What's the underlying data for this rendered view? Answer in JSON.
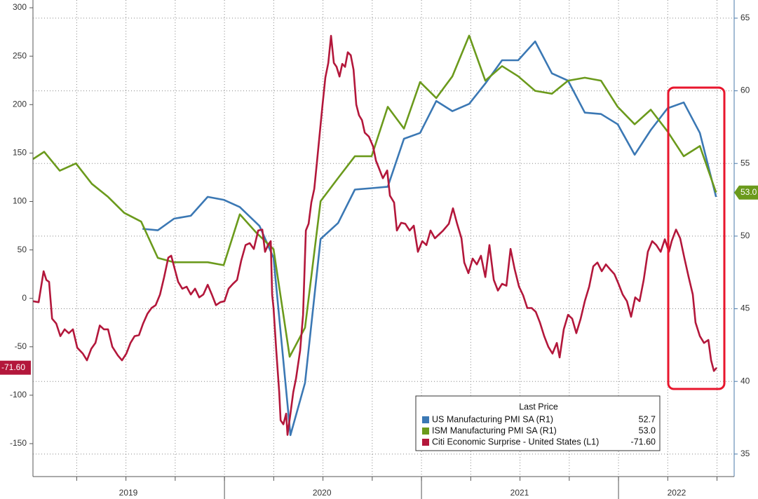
{
  "chart_data": {
    "type": "line",
    "xlim": [
      2019.028,
      2022.587
    ],
    "xticks": [
      {
        "value": 2019.512,
        "label": "2019"
      },
      {
        "value": 2020.495,
        "label": "2020"
      },
      {
        "value": 2021.498,
        "label": "2021"
      },
      {
        "value": 2022.295,
        "label": "2022"
      }
    ],
    "year_boundaries": [
      2020,
      2021,
      2022
    ],
    "xgrid": [
      2019.25,
      2019.5,
      2019.75,
      2020,
      2020.25,
      2020.5,
      2020.75,
      2021,
      2021.25,
      2021.5,
      2021.75,
      2022,
      2022.25,
      2022.5
    ],
    "ylim": [
      -184,
      308
    ],
    "yticks": [
      -150,
      -100,
      -50,
      0,
      50,
      100,
      150,
      200,
      250,
      300
    ],
    "y2lim": [
      33.45,
      66.25
    ],
    "y2ticks": [
      35,
      40,
      45,
      50,
      55,
      60,
      65
    ],
    "grid": true,
    "legend_title": "Last Price",
    "series": [
      {
        "name": "US Manufacturing PMI SA (R1)",
        "color": "#3b78b4",
        "axis": "y2",
        "last_value": 52.7,
        "last_label": "52.7",
        "x": [
          2019.584,
          2019.662,
          2019.744,
          2019.829,
          2019.915,
          2019.996,
          2020.078,
          2020.178,
          2020.249,
          2020.335,
          2020.409,
          2020.488,
          2020.577,
          2020.662,
          2020.747,
          2020.829,
          2020.911,
          2020.993,
          2021.075,
          2021.157,
          2021.242,
          2021.324,
          2021.409,
          2021.491,
          2021.577,
          2021.662,
          2021.744,
          2021.829,
          2021.911,
          2021.996,
          2022.082,
          2022.164,
          2022.249,
          2022.331,
          2022.413,
          2022.495
        ],
        "values": [
          50.5,
          50.4,
          51.2,
          51.4,
          52.7,
          52.5,
          52.0,
          50.7,
          48.5,
          36.3,
          39.9,
          49.8,
          50.9,
          53.2,
          53.3,
          53.4,
          56.7,
          57.1,
          59.3,
          58.6,
          59.1,
          60.5,
          62.1,
          62.1,
          63.4,
          61.2,
          60.7,
          58.5,
          58.4,
          57.7,
          55.6,
          57.3,
          58.8,
          59.2,
          57.1,
          52.7
        ]
      },
      {
        "name": "ISM Manufacturing PMI SA (R1)",
        "color": "#6b9a1c",
        "axis": "y2",
        "last_value": 53.0,
        "last_label": "53.0",
        "x": [
          2019.028,
          2019.085,
          2019.164,
          2019.246,
          2019.327,
          2019.409,
          2019.491,
          2019.577,
          2019.662,
          2019.744,
          2019.829,
          2019.915,
          2019.996,
          2020.078,
          2020.164,
          2020.249,
          2020.331,
          2020.409,
          2020.488,
          2020.577,
          2020.662,
          2020.747,
          2020.829,
          2020.911,
          2020.993,
          2021.075,
          2021.157,
          2021.242,
          2021.324,
          2021.409,
          2021.491,
          2021.577,
          2021.662,
          2021.744,
          2021.829,
          2021.911,
          2021.996,
          2022.082,
          2022.164,
          2022.249,
          2022.331,
          2022.413,
          2022.495
        ],
        "values": [
          55.3,
          55.8,
          54.5,
          55.0,
          53.6,
          52.7,
          51.6,
          51.0,
          48.5,
          48.2,
          48.2,
          48.2,
          48.0,
          51.5,
          50.2,
          49.1,
          41.7,
          43.7,
          52.4,
          54.0,
          55.5,
          55.5,
          58.9,
          57.4,
          60.6,
          59.5,
          61.0,
          63.8,
          60.7,
          61.7,
          61.0,
          60.0,
          59.8,
          60.7,
          60.9,
          60.7,
          58.9,
          57.7,
          58.7,
          57.2,
          55.5,
          56.2,
          53.0
        ]
      },
      {
        "name": "Citi Economic Surprise - United States (L1)",
        "color": "#b3173b",
        "axis": "y",
        "last_value": -71.6,
        "last_label": "-71.60",
        "x": [
          2019.028,
          2019.057,
          2019.082,
          2019.096,
          2019.11,
          2019.125,
          2019.146,
          2019.167,
          2019.189,
          2019.21,
          2019.231,
          2019.253,
          2019.281,
          2019.302,
          2019.324,
          2019.345,
          2019.367,
          2019.388,
          2019.409,
          2019.431,
          2019.459,
          2019.48,
          2019.502,
          2019.523,
          2019.544,
          2019.566,
          2019.587,
          2019.609,
          2019.63,
          2019.651,
          2019.673,
          2019.694,
          2019.715,
          2019.73,
          2019.744,
          2019.765,
          2019.786,
          2019.808,
          2019.829,
          2019.851,
          2019.872,
          2019.893,
          2019.915,
          2019.936,
          2019.957,
          2019.979,
          2020.0,
          2020.021,
          2020.043,
          2020.064,
          2020.085,
          2020.107,
          2020.128,
          2020.149,
          2020.171,
          2020.192,
          2020.206,
          2020.221,
          2020.235,
          2020.242,
          2020.249,
          2020.263,
          2020.278,
          2020.285,
          2020.299,
          2020.313,
          2020.32,
          2020.335,
          2020.349,
          2020.363,
          2020.384,
          2020.399,
          2020.413,
          2020.427,
          2020.441,
          2020.456,
          2020.47,
          2020.484,
          2020.498,
          2020.512,
          2020.527,
          2020.541,
          2020.555,
          2020.569,
          2020.584,
          2020.598,
          2020.612,
          2020.626,
          2020.641,
          2020.655,
          2020.669,
          2020.683,
          2020.698,
          2020.712,
          2020.733,
          2020.754,
          2020.769,
          2020.783,
          2020.804,
          2020.826,
          2020.84,
          2020.861,
          2020.875,
          2020.897,
          2020.918,
          2020.94,
          2020.961,
          2020.982,
          2021.004,
          2021.025,
          2021.046,
          2021.068,
          2021.089,
          2021.11,
          2021.139,
          2021.16,
          2021.181,
          2021.203,
          2021.217,
          2021.238,
          2021.26,
          2021.281,
          2021.302,
          2021.324,
          2021.345,
          2021.367,
          2021.388,
          2021.409,
          2021.431,
          2021.452,
          2021.473,
          2021.495,
          2021.516,
          2021.537,
          2021.559,
          2021.58,
          2021.601,
          2021.623,
          2021.644,
          2021.665,
          2021.687,
          2021.701,
          2021.722,
          2021.744,
          2021.765,
          2021.786,
          2021.808,
          2021.829,
          2021.851,
          2021.872,
          2021.893,
          2021.915,
          2021.936,
          2021.957,
          2021.979,
          2022.0,
          2022.021,
          2022.043,
          2022.064,
          2022.085,
          2022.107,
          2022.128,
          2022.149,
          2022.171,
          2022.192,
          2022.214,
          2022.235,
          2022.256,
          2022.27,
          2022.292,
          2022.313,
          2022.335,
          2022.356,
          2022.377,
          2022.391,
          2022.413,
          2022.434,
          2022.456,
          2022.47,
          2022.484,
          2022.498
        ],
        "values": [
          -3,
          -4,
          28,
          19,
          17,
          -21,
          -26,
          -39,
          -32,
          -36,
          -32,
          -51,
          -57,
          -64,
          -52,
          -46,
          -28,
          -32,
          -32,
          -50,
          -59,
          -64,
          -57,
          -46,
          -39,
          -38,
          -26,
          -16,
          -10,
          -7,
          4,
          22,
          42,
          44,
          33,
          17,
          10,
          12,
          4,
          10,
          1,
          4,
          14,
          4,
          -7,
          -4,
          -3,
          10,
          15,
          19,
          39,
          55,
          57,
          51,
          70,
          71,
          48,
          55,
          59,
          4,
          -10,
          -54,
          -97,
          -126,
          -130,
          -119,
          -141,
          -119,
          -97,
          -83,
          -54,
          -17,
          70,
          77,
          99,
          113,
          142,
          171,
          200,
          228,
          243,
          271,
          243,
          239,
          229,
          242,
          239,
          254,
          251,
          236,
          200,
          189,
          184,
          171,
          167,
          157,
          142,
          135,
          124,
          132,
          106,
          99,
          70,
          78,
          77,
          70,
          75,
          48,
          59,
          55,
          70,
          62,
          66,
          70,
          77,
          93,
          77,
          62,
          37,
          26,
          41,
          35,
          44,
          22,
          55,
          19,
          8,
          15,
          13,
          51,
          30,
          12,
          3,
          -10,
          -10,
          -14,
          -25,
          -39,
          -50,
          -57,
          -46,
          -61,
          -32,
          -17,
          -21,
          -36,
          -21,
          -3,
          12,
          33,
          37,
          28,
          35,
          30,
          25,
          15,
          4,
          -3,
          -19,
          1,
          -3,
          19,
          48,
          59,
          55,
          48,
          61,
          48,
          59,
          71,
          62,
          41,
          22,
          4,
          -25,
          -39,
          -46,
          -43,
          -64,
          -75,
          -71.6
        ]
      }
    ]
  }
}
